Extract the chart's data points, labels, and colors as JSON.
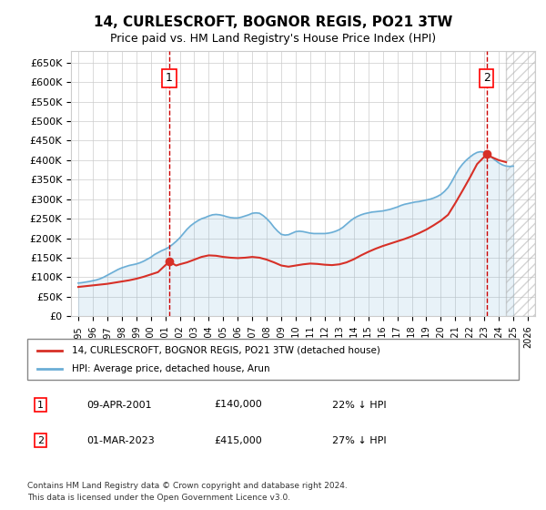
{
  "title": "14, CURLESCROFT, BOGNOR REGIS, PO21 3TW",
  "subtitle": "Price paid vs. HM Land Registry's House Price Index (HPI)",
  "legend_label_red": "14, CURLESCROFT, BOGNOR REGIS, PO21 3TW (detached house)",
  "legend_label_blue": "HPI: Average price, detached house, Arun",
  "annotation1_label": "1",
  "annotation1_date": "09-APR-2001",
  "annotation1_price": "£140,000",
  "annotation1_hpi": "22% ↓ HPI",
  "annotation1_year": 2001.27,
  "annotation1_value": 140000,
  "annotation2_label": "2",
  "annotation2_date": "01-MAR-2023",
  "annotation2_price": "£415,000",
  "annotation2_hpi": "27% ↓ HPI",
  "annotation2_year": 2023.16,
  "annotation2_value": 415000,
  "footer1": "Contains HM Land Registry data © Crown copyright and database right 2024.",
  "footer2": "This data is licensed under the Open Government Licence v3.0.",
  "ylim": [
    0,
    680000
  ],
  "yticks": [
    0,
    50000,
    100000,
    150000,
    200000,
    250000,
    300000,
    350000,
    400000,
    450000,
    500000,
    550000,
    600000,
    650000
  ],
  "xlim_start": 1994.5,
  "xlim_end": 2026.5,
  "hpi_color": "#6baed6",
  "price_color": "#d73027",
  "vline_color": "#cc0000",
  "grid_color": "#cccccc",
  "hpi_data_years": [
    1995,
    1995.25,
    1995.5,
    1995.75,
    1996,
    1996.25,
    1996.5,
    1996.75,
    1997,
    1997.25,
    1997.5,
    1997.75,
    1998,
    1998.25,
    1998.5,
    1998.75,
    1999,
    1999.25,
    1999.5,
    1999.75,
    2000,
    2000.25,
    2000.5,
    2000.75,
    2001,
    2001.25,
    2001.5,
    2001.75,
    2002,
    2002.25,
    2002.5,
    2002.75,
    2003,
    2003.25,
    2003.5,
    2003.75,
    2004,
    2004.25,
    2004.5,
    2004.75,
    2005,
    2005.25,
    2005.5,
    2005.75,
    2006,
    2006.25,
    2006.5,
    2006.75,
    2007,
    2007.25,
    2007.5,
    2007.75,
    2008,
    2008.25,
    2008.5,
    2008.75,
    2009,
    2009.25,
    2009.5,
    2009.75,
    2010,
    2010.25,
    2010.5,
    2010.75,
    2011,
    2011.25,
    2011.5,
    2011.75,
    2012,
    2012.25,
    2012.5,
    2012.75,
    2013,
    2013.25,
    2013.5,
    2013.75,
    2014,
    2014.25,
    2014.5,
    2014.75,
    2015,
    2015.25,
    2015.5,
    2015.75,
    2016,
    2016.25,
    2016.5,
    2016.75,
    2017,
    2017.25,
    2017.5,
    2017.75,
    2018,
    2018.25,
    2018.5,
    2018.75,
    2019,
    2019.25,
    2019.5,
    2019.75,
    2020,
    2020.25,
    2020.5,
    2020.75,
    2021,
    2021.25,
    2021.5,
    2021.75,
    2022,
    2022.25,
    2022.5,
    2022.75,
    2023,
    2023.25,
    2023.5,
    2023.75,
    2024,
    2024.25,
    2024.5,
    2024.75,
    2025
  ],
  "hpi_values": [
    85000,
    86000,
    87500,
    89000,
    91000,
    93000,
    96000,
    100000,
    105000,
    110000,
    115000,
    120000,
    124000,
    127000,
    130000,
    132000,
    134000,
    137000,
    141000,
    146000,
    151000,
    158000,
    163000,
    168000,
    172000,
    177000,
    184000,
    192000,
    201000,
    212000,
    223000,
    232000,
    239000,
    245000,
    250000,
    253000,
    257000,
    260000,
    261000,
    260000,
    258000,
    255000,
    253000,
    252000,
    252000,
    254000,
    257000,
    260000,
    264000,
    265000,
    264000,
    258000,
    250000,
    240000,
    228000,
    218000,
    210000,
    208000,
    209000,
    213000,
    217000,
    218000,
    217000,
    215000,
    213000,
    212000,
    212000,
    212000,
    212000,
    213000,
    215000,
    218000,
    222000,
    228000,
    236000,
    244000,
    251000,
    256000,
    260000,
    263000,
    265000,
    267000,
    268000,
    269000,
    270000,
    272000,
    274000,
    277000,
    280000,
    284000,
    287000,
    289000,
    291000,
    293000,
    294000,
    296000,
    298000,
    300000,
    303000,
    307000,
    312000,
    320000,
    330000,
    345000,
    362000,
    378000,
    390000,
    400000,
    408000,
    415000,
    420000,
    422000,
    420000,
    415000,
    408000,
    400000,
    393000,
    388000,
    385000,
    384000,
    385000
  ],
  "price_data_years": [
    1995,
    1995.5,
    1996,
    1996.5,
    1997,
    1997.5,
    1998,
    1998.5,
    1999,
    1999.5,
    2000,
    2000.5,
    2001.27,
    2001.75,
    2002,
    2002.5,
    2003,
    2003.5,
    2004,
    2004.5,
    2005,
    2005.5,
    2006,
    2006.5,
    2007,
    2007.5,
    2008,
    2008.5,
    2009,
    2009.5,
    2010,
    2010.5,
    2011,
    2011.5,
    2012,
    2012.5,
    2013,
    2013.5,
    2014,
    2014.5,
    2015,
    2015.5,
    2016,
    2016.5,
    2017,
    2017.5,
    2018,
    2018.5,
    2019,
    2019.5,
    2020,
    2020.5,
    2021,
    2021.5,
    2022,
    2022.5,
    2023.16,
    2023.5,
    2024,
    2024.5
  ],
  "price_values": [
    75000,
    77000,
    79000,
    81000,
    83000,
    86000,
    89000,
    92000,
    96000,
    101000,
    107000,
    113000,
    140000,
    130000,
    133000,
    138000,
    145000,
    152000,
    156000,
    155000,
    152000,
    150000,
    149000,
    150000,
    152000,
    150000,
    145000,
    138000,
    130000,
    127000,
    130000,
    133000,
    135000,
    134000,
    132000,
    131000,
    133000,
    138000,
    146000,
    156000,
    165000,
    173000,
    180000,
    186000,
    192000,
    198000,
    205000,
    213000,
    222000,
    233000,
    245000,
    260000,
    290000,
    322000,
    355000,
    390000,
    415000,
    408000,
    400000,
    395000
  ]
}
